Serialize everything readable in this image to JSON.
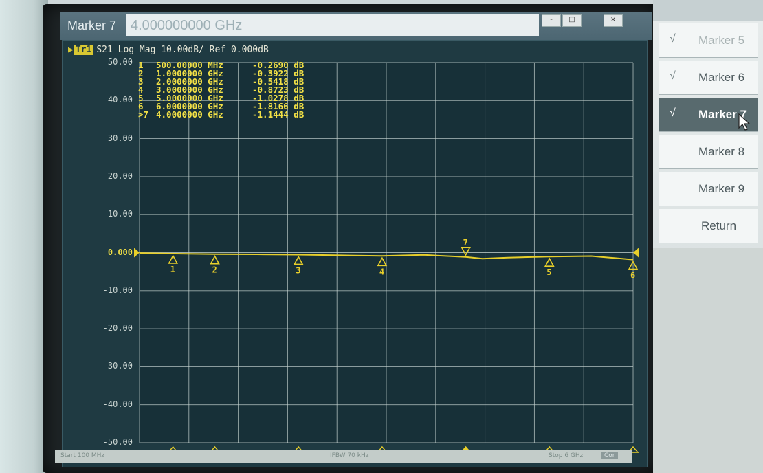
{
  "entry": {
    "label": "Marker 7",
    "value": "4.000000000 GHz",
    "window_buttons": [
      "-",
      "□",
      "×"
    ]
  },
  "trace": {
    "tag": "Tr1",
    "header": "S21 Log Mag 10.00dB/ Ref 0.000dB"
  },
  "y_axis": {
    "ticks": [
      "50.00",
      "40.00",
      "30.00",
      "20.00",
      "10.00",
      "0.000",
      "-10.00",
      "-20.00",
      "-30.00",
      "-40.00",
      "-50.00"
    ]
  },
  "markers": [
    {
      "id": "1",
      "freq": "500.00000 MHz",
      "value": "-0.2690 dB"
    },
    {
      "id": "2",
      "freq": "1.0000000 GHz",
      "value": "-0.3922 dB"
    },
    {
      "id": "3",
      "freq": "2.0000000 GHz",
      "value": "-0.5418 dB"
    },
    {
      "id": "4",
      "freq": "3.0000000 GHz",
      "value": "-0.8723 dB"
    },
    {
      "id": "5",
      "freq": "5.0000000 GHz",
      "value": "-1.0278 dB"
    },
    {
      "id": "6",
      "freq": "6.0000000 GHz",
      "value": "-1.8166 dB"
    },
    {
      "id": ">7",
      "freq": "4.0000000 GHz",
      "value": "-1.1444 dB"
    }
  ],
  "chart_data": {
    "type": "line",
    "ylim": [
      -50,
      50
    ],
    "xlim_ghz": [
      0.1,
      6
    ],
    "series": [
      {
        "x": [
          0.1,
          0.5,
          1,
          1.5,
          2,
          2.5,
          3,
          3.5,
          4,
          4.2,
          4.5,
          5,
          5.5,
          6
        ],
        "values": [
          -0.1,
          -0.27,
          -0.39,
          -0.45,
          -0.54,
          -0.7,
          -0.87,
          -0.6,
          -1.14,
          -1.6,
          -1.3,
          -1.03,
          -0.9,
          -1.82
        ]
      }
    ],
    "marker_x_ghz": [
      0.5,
      1,
      2,
      3,
      5,
      6,
      4
    ],
    "marker_labels": [
      "1",
      "2",
      "3",
      "4",
      "5",
      "6",
      "7"
    ]
  },
  "status": {
    "start": "Start 100 MHz",
    "ifbw": "IFBW 70 kHz",
    "stop": "Stop 6 GHz",
    "badge": "Cor"
  },
  "softkeys": [
    {
      "label": "Marker 5",
      "checked": true,
      "state": "dim"
    },
    {
      "label": "Marker 6",
      "checked": true,
      "state": "normal"
    },
    {
      "label": "Marker 7",
      "checked": true,
      "state": "active"
    },
    {
      "label": "Marker 8",
      "checked": false,
      "state": "normal"
    },
    {
      "label": "Marker 9",
      "checked": false,
      "state": "normal"
    },
    {
      "label": "Return",
      "checked": false,
      "state": "normal"
    }
  ],
  "colors": {
    "trace": "#e8cf2a",
    "grid": "#c9d6d3",
    "plot_bg": "#1f3a42"
  }
}
